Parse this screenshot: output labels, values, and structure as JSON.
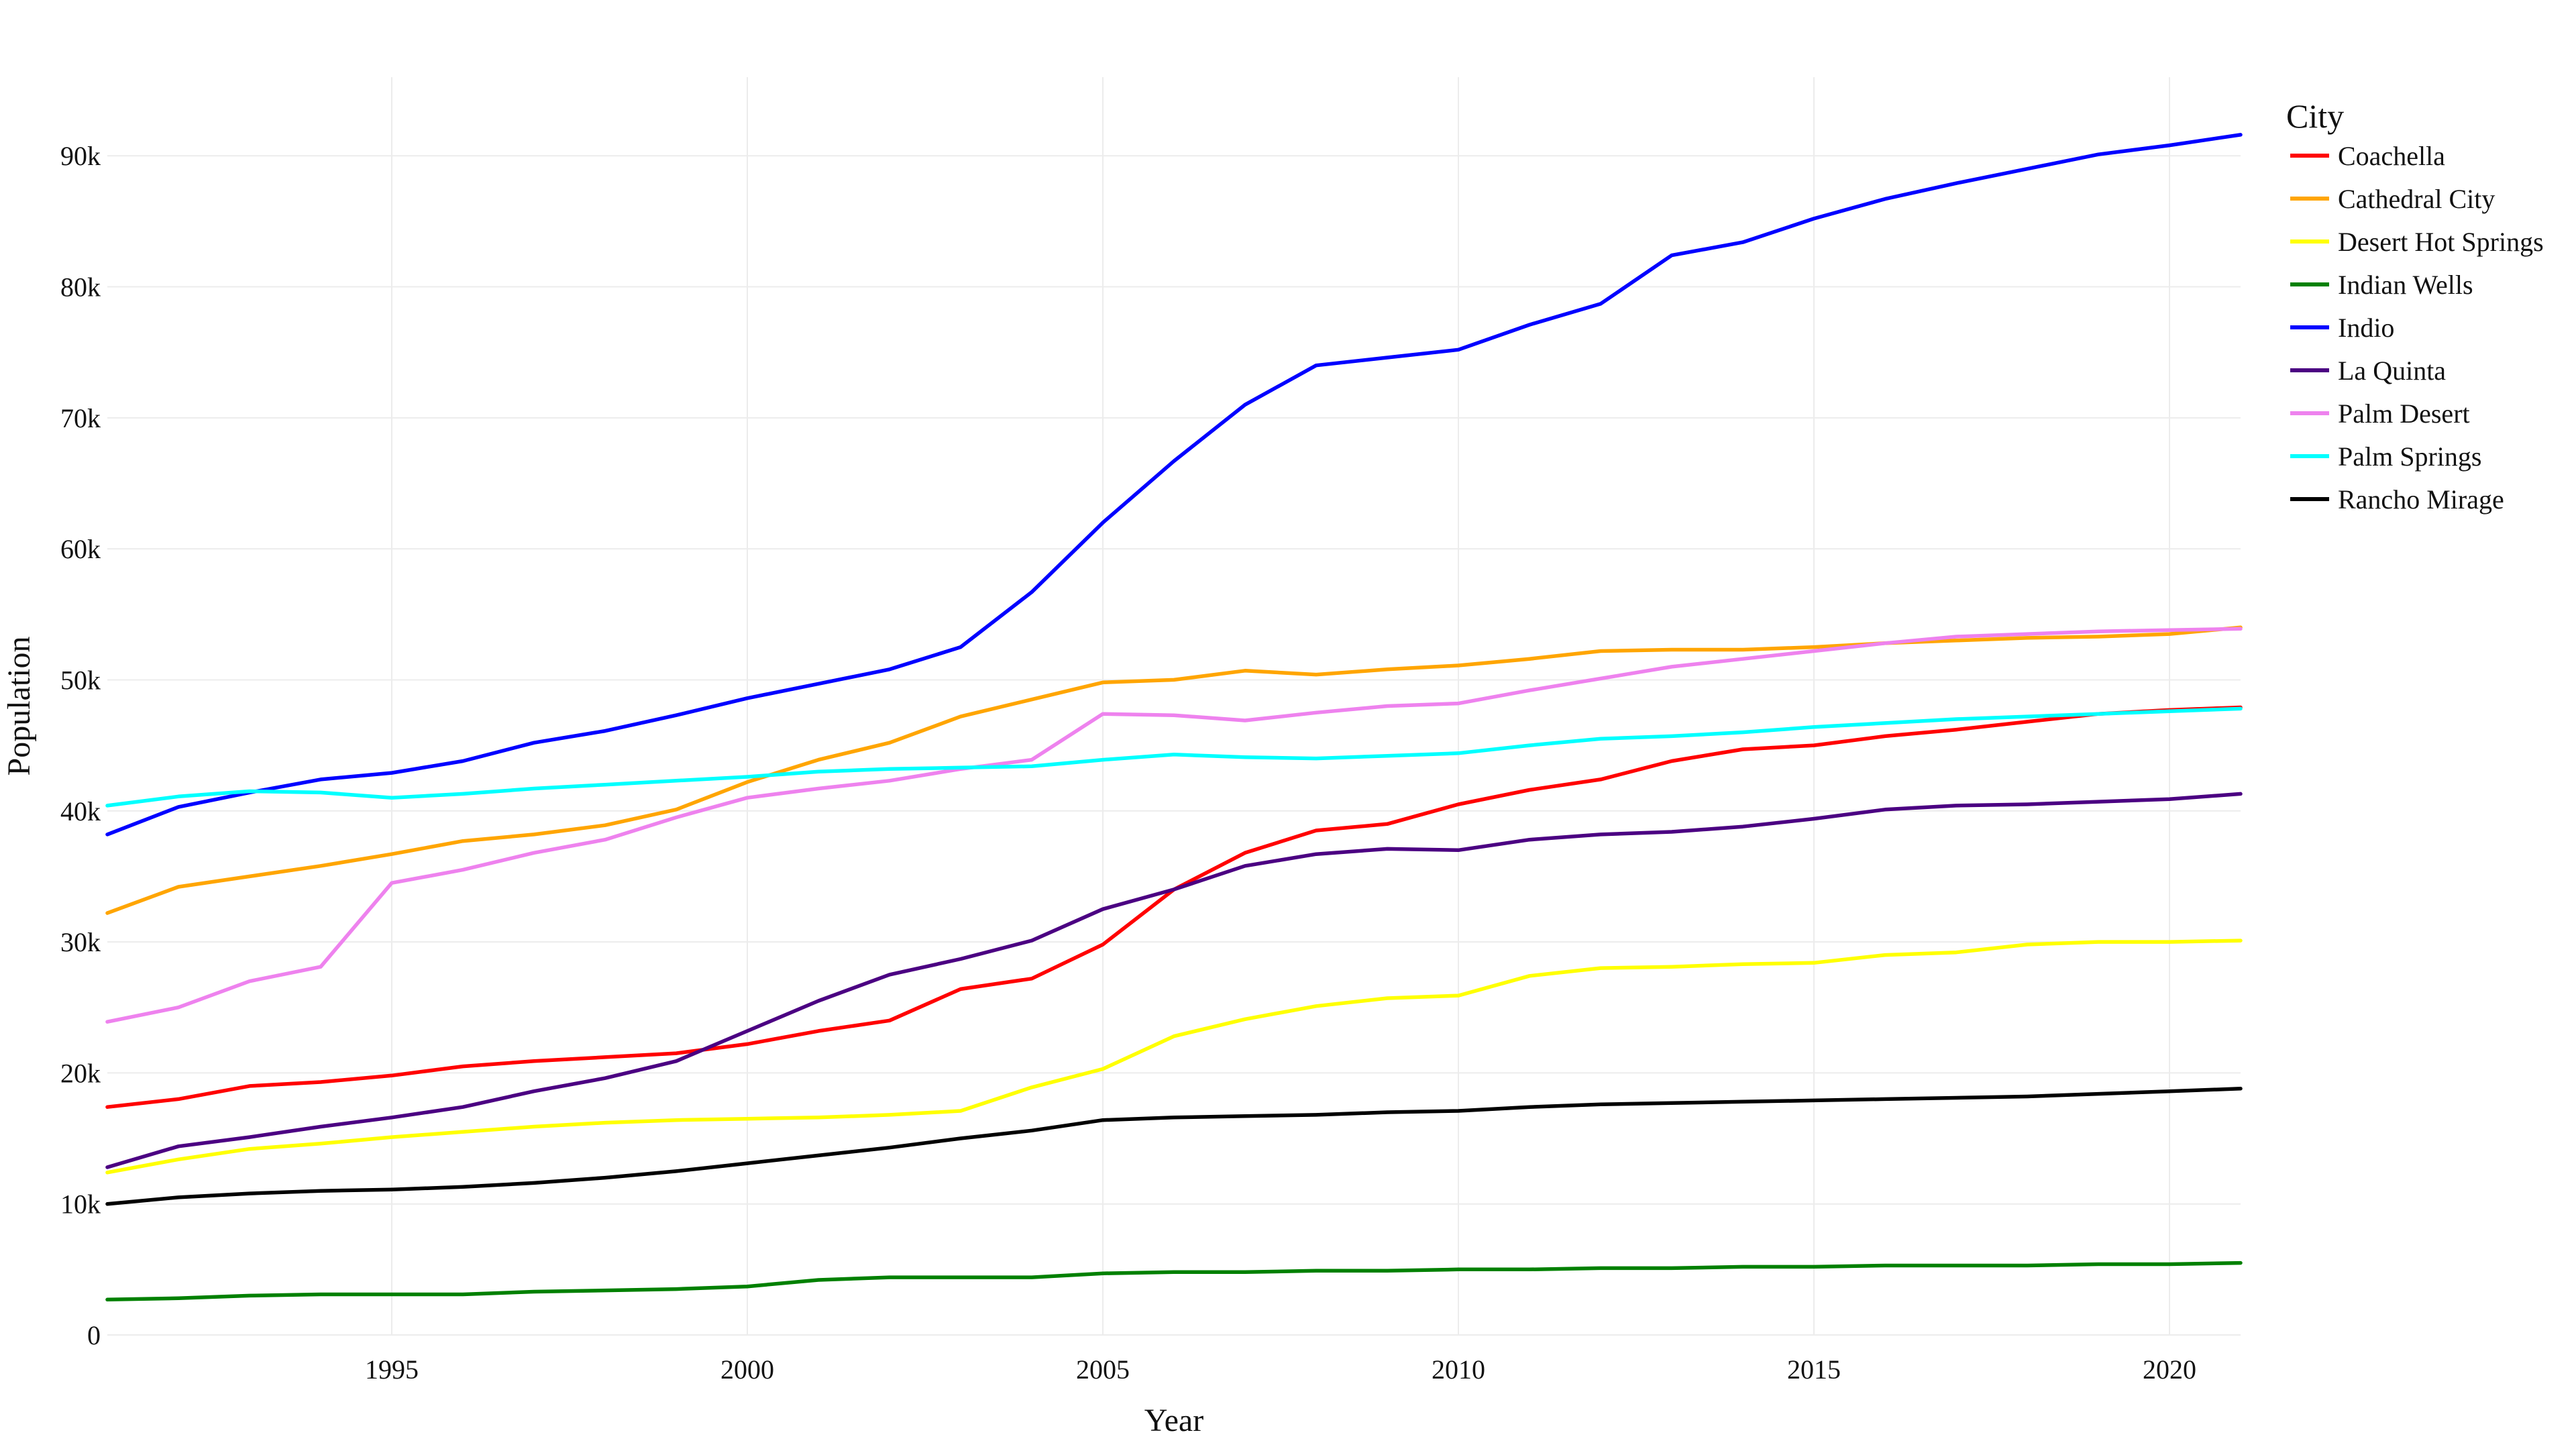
{
  "chart_data": {
    "type": "line",
    "title": "",
    "xlabel": "Year",
    "ylabel": "Population",
    "xlim": [
      1991,
      2021
    ],
    "ylim": [
      0,
      96000
    ],
    "x_ticks": [
      1995,
      2000,
      2005,
      2010,
      2015,
      2020
    ],
    "x_tick_labels": [
      "1995",
      "2000",
      "2005",
      "2010",
      "2015",
      "2020"
    ],
    "y_ticks": [
      0,
      10000,
      20000,
      30000,
      40000,
      50000,
      60000,
      70000,
      80000,
      90000
    ],
    "y_tick_labels": [
      "0",
      "10k",
      "20k",
      "30k",
      "40k",
      "50k",
      "60k",
      "70k",
      "80k",
      "90k"
    ],
    "grid": true,
    "legend_title": "City",
    "legend_position": "right",
    "x": [
      1991,
      1992,
      1993,
      1994,
      1995,
      1996,
      1997,
      1998,
      1999,
      2000,
      2001,
      2002,
      2003,
      2004,
      2005,
      2006,
      2007,
      2008,
      2009,
      2010,
      2011,
      2012,
      2013,
      2014,
      2015,
      2016,
      2017,
      2018,
      2019,
      2020,
      2021
    ],
    "series": [
      {
        "name": "Coachella",
        "color": "#ff0000",
        "values": [
          17400,
          18000,
          19000,
          19300,
          19800,
          20500,
          20900,
          21200,
          21500,
          22200,
          23200,
          24000,
          26400,
          27200,
          29800,
          34000,
          36800,
          38500,
          39000,
          40500,
          41600,
          42400,
          43800,
          44700,
          45000,
          45700,
          46200,
          46800,
          47400,
          47700,
          47900
        ]
      },
      {
        "name": "Cathedral City",
        "color": "#ffa500",
        "values": [
          32200,
          34200,
          35000,
          35800,
          36700,
          37700,
          38200,
          38900,
          40100,
          42200,
          43900,
          45200,
          47200,
          48500,
          49800,
          50000,
          50700,
          50400,
          50800,
          51100,
          51600,
          52200,
          52300,
          52300,
          52500,
          52800,
          53000,
          53200,
          53300,
          53500,
          54000
        ]
      },
      {
        "name": "Desert Hot Springs",
        "color": "#ffff00",
        "values": [
          12400,
          13400,
          14200,
          14600,
          15100,
          15500,
          15900,
          16200,
          16400,
          16500,
          16600,
          16800,
          17100,
          18900,
          20300,
          22800,
          24100,
          25100,
          25700,
          25900,
          27400,
          28000,
          28100,
          28300,
          28400,
          29000,
          29200,
          29800,
          30000,
          30000,
          30100
        ]
      },
      {
        "name": "Indian Wells",
        "color": "#008000",
        "values": [
          2700,
          2800,
          3000,
          3100,
          3100,
          3100,
          3300,
          3400,
          3500,
          3700,
          4200,
          4400,
          4400,
          4400,
          4700,
          4800,
          4800,
          4900,
          4900,
          5000,
          5000,
          5100,
          5100,
          5200,
          5200,
          5300,
          5300,
          5300,
          5400,
          5400,
          5500
        ]
      },
      {
        "name": "Indio",
        "color": "#0000ff",
        "values": [
          38200,
          40300,
          41400,
          42400,
          42900,
          43800,
          45200,
          46100,
          47300,
          48600,
          49700,
          50800,
          52500,
          56700,
          62000,
          66700,
          71000,
          74000,
          74600,
          75200,
          77100,
          78700,
          82400,
          83400,
          85200,
          86700,
          87900,
          89000,
          90100,
          90800,
          91600
        ]
      },
      {
        "name": "La Quinta",
        "color": "#4b0082",
        "values": [
          12800,
          14400,
          15100,
          15900,
          16600,
          17400,
          18600,
          19600,
          20900,
          23200,
          25500,
          27500,
          28700,
          30100,
          32500,
          34000,
          35800,
          36700,
          37100,
          37000,
          37800,
          38200,
          38400,
          38800,
          39400,
          40100,
          40400,
          40500,
          40700,
          40900,
          41300
        ]
      },
      {
        "name": "Palm Desert",
        "color": "#ee82ee",
        "values": [
          23900,
          25000,
          27000,
          28100,
          34500,
          35500,
          36800,
          37800,
          39500,
          41000,
          41700,
          42300,
          43200,
          43900,
          47400,
          47300,
          46900,
          47500,
          48000,
          48200,
          49200,
          50100,
          51000,
          51600,
          52200,
          52800,
          53300,
          53500,
          53700,
          53800,
          53900
        ]
      },
      {
        "name": "Palm Springs",
        "color": "#00ffff",
        "values": [
          40400,
          41100,
          41500,
          41400,
          41000,
          41300,
          41700,
          42000,
          42300,
          42600,
          43000,
          43200,
          43300,
          43400,
          43900,
          44300,
          44100,
          44000,
          44200,
          44400,
          45000,
          45500,
          45700,
          46000,
          46400,
          46700,
          47000,
          47200,
          47400,
          47600,
          47800
        ]
      },
      {
        "name": "Rancho Mirage",
        "color": "#000000",
        "values": [
          10000,
          10500,
          10800,
          11000,
          11100,
          11300,
          11600,
          12000,
          12500,
          13100,
          13700,
          14300,
          15000,
          15600,
          16400,
          16600,
          16700,
          16800,
          17000,
          17100,
          17400,
          17600,
          17700,
          17800,
          17900,
          18000,
          18100,
          18200,
          18400,
          18600,
          18800
        ]
      }
    ]
  }
}
